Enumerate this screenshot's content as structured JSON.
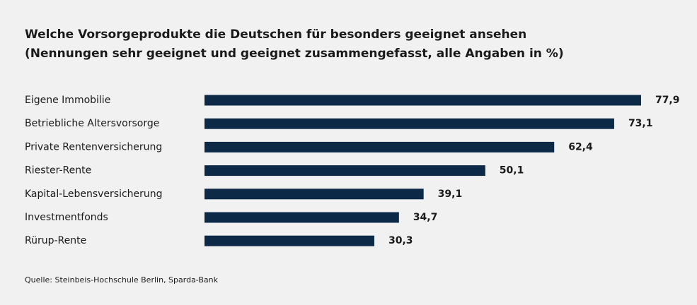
{
  "chart_data": {
    "type": "bar",
    "orientation": "horizontal",
    "title": "Welche Vorsorgeprodukte die Deutschen für besonders geeignet ansehen",
    "subtitle": "(Nennungen sehr geeignet und geeignet zusammengefasst, alle Angaben in %)",
    "categories": [
      "Eigene Immobilie",
      "Betriebliche Altersvorsorge",
      "Private Rentenversicherung",
      "Riester-Rente",
      "Kapital-Lebensversicherung",
      "Investmentfonds",
      "Rürup-Rente"
    ],
    "values": [
      77.9,
      73.1,
      62.4,
      50.1,
      39.1,
      34.7,
      30.3
    ],
    "value_labels": [
      "77,9",
      "73,1",
      "62,4",
      "50,1",
      "39,1",
      "34,7",
      "30,3"
    ],
    "color": "#0c2a47",
    "source": "Quelle: Steinbeis-Hochschule Berlin, Sparda-Bank"
  }
}
